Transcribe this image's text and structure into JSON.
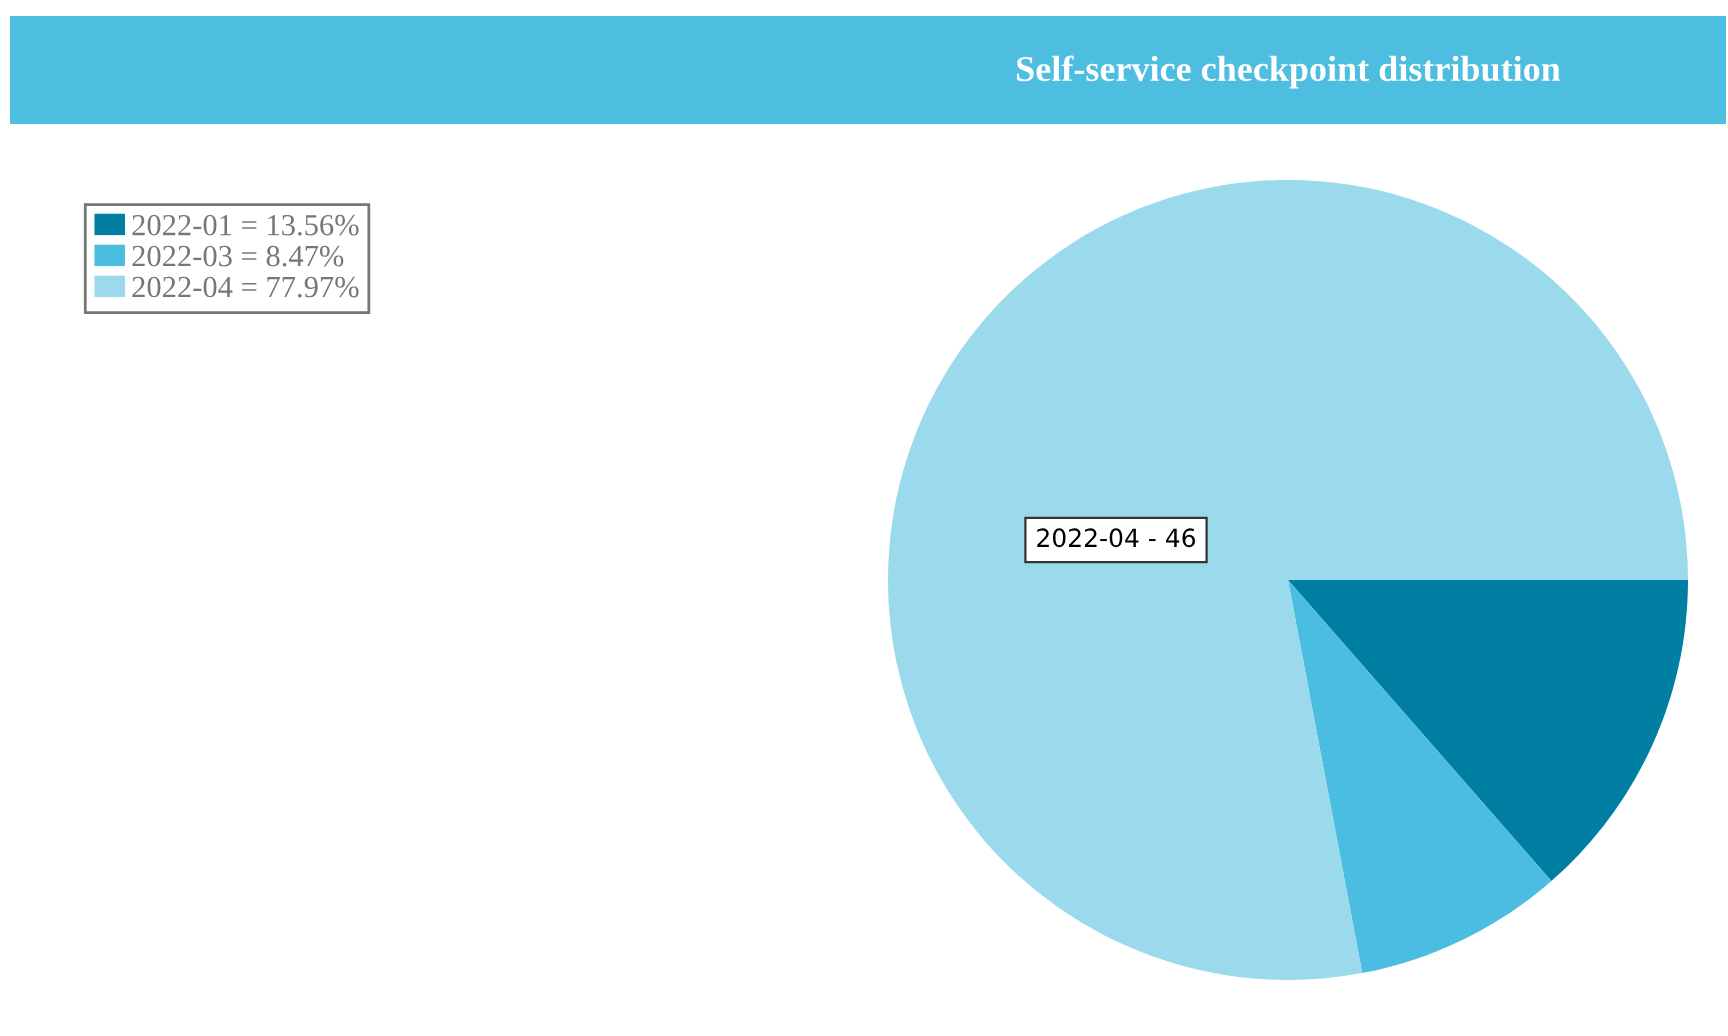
{
  "chart_data": {
    "type": "pie",
    "title": "Self-service checkpoint distribution",
    "categories": [
      "2022-01 = 13.56%",
      "2022-03 = 8.47%",
      "2022-04 = 77.97%"
    ],
    "values": [
      13.56,
      8.47,
      77.97
    ],
    "colors": [
      "#007fa3",
      "#4bbde0",
      "#9bdaec"
    ],
    "legend": "top left",
    "annotations": [
      "2022-04 - 46"
    ]
  }
}
